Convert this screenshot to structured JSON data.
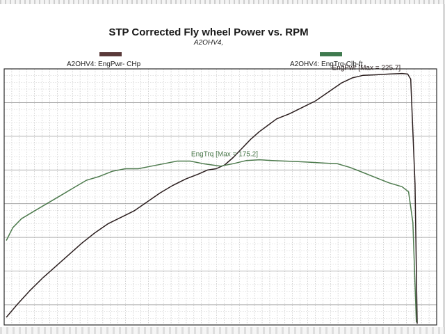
{
  "chart_data": {
    "type": "line",
    "title": "STP Corrected Fly wheel Power vs. RPM",
    "subtitle": "A2OHV4,",
    "xlabel": "",
    "ylabel": "",
    "x_range": [
      0,
      100
    ],
    "y_range": [
      0,
      100
    ],
    "grid": true,
    "legend_position": "top",
    "series": [
      {
        "name": "A2OHV4: EngPwr- CHp",
        "color": "#2b1e1e",
        "swatch_color": "#5a3a3a",
        "annotation": "EngPwr [Max = 225.7]",
        "points": [
          [
            0.5,
            3
          ],
          [
            3,
            8
          ],
          [
            6,
            13.5
          ],
          [
            9,
            18.5
          ],
          [
            12,
            23
          ],
          [
            15,
            27.5
          ],
          [
            18,
            32
          ],
          [
            21,
            36
          ],
          [
            24,
            39.5
          ],
          [
            27,
            42
          ],
          [
            30,
            44.5
          ],
          [
            33,
            48
          ],
          [
            36,
            51.5
          ],
          [
            39,
            54.5
          ],
          [
            42,
            57
          ],
          [
            45,
            59
          ],
          [
            47,
            60.5
          ],
          [
            49,
            61
          ],
          [
            51,
            62.5
          ],
          [
            53,
            65.5
          ],
          [
            55,
            69
          ],
          [
            57,
            72.5
          ],
          [
            59,
            75.5
          ],
          [
            61,
            78
          ],
          [
            63,
            80.5
          ],
          [
            66,
            82.5
          ],
          [
            69,
            85
          ],
          [
            72,
            87.5
          ],
          [
            75,
            91
          ],
          [
            78,
            94.5
          ],
          [
            80.5,
            96.5
          ],
          [
            83,
            97.5
          ],
          [
            86,
            97.7
          ],
          [
            89,
            98
          ],
          [
            92,
            98.2
          ],
          [
            93.3,
            98
          ],
          [
            94,
            96
          ],
          [
            95,
            55
          ],
          [
            95.5,
            0.5
          ]
        ]
      },
      {
        "name": "A2OHV4: EngTrq-Clb-ft",
        "color": "#4d7a4d",
        "swatch_color": "#3f7a4f",
        "annotation": "EngTrq [Max = 175.2]",
        "points": [
          [
            0.5,
            33
          ],
          [
            2,
            38
          ],
          [
            4,
            41.5
          ],
          [
            7,
            44.5
          ],
          [
            10,
            47.5
          ],
          [
            13,
            50.5
          ],
          [
            16,
            53.5
          ],
          [
            19,
            56.5
          ],
          [
            22,
            58
          ],
          [
            25,
            60
          ],
          [
            28,
            61
          ],
          [
            31,
            61
          ],
          [
            34,
            62
          ],
          [
            37,
            63
          ],
          [
            40,
            64
          ],
          [
            43,
            64
          ],
          [
            46,
            63
          ],
          [
            48,
            62.5
          ],
          [
            50,
            62
          ],
          [
            53,
            63
          ],
          [
            56,
            64.2
          ],
          [
            59,
            64.5
          ],
          [
            62,
            64.2
          ],
          [
            65,
            64
          ],
          [
            68,
            63.8
          ],
          [
            71,
            63.5
          ],
          [
            74,
            63.2
          ],
          [
            77,
            63
          ],
          [
            80,
            61.5
          ],
          [
            83,
            59.5
          ],
          [
            86,
            57.5
          ],
          [
            89,
            55.5
          ],
          [
            92,
            54
          ],
          [
            93.5,
            52
          ],
          [
            94.5,
            40
          ],
          [
            95.3,
            1
          ]
        ]
      }
    ]
  }
}
